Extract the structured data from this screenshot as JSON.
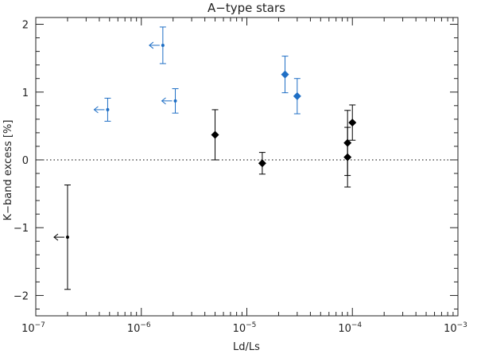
{
  "chart_data": {
    "type": "scatter",
    "title": "A−type stars",
    "xlabel": "Ld/Ls",
    "ylabel": "K−band excess [%]",
    "xscale": "log",
    "xlim": [
      1e-07,
      0.001
    ],
    "ylim": [
      -2.3,
      2.1
    ],
    "xticks": [
      {
        "value": 1e-07,
        "base": "10",
        "exp": "−7"
      },
      {
        "value": 1e-06,
        "base": "10",
        "exp": "−6"
      },
      {
        "value": 1e-05,
        "base": "10",
        "exp": "−5"
      },
      {
        "value": 0.0001,
        "base": "10",
        "exp": "−4"
      },
      {
        "value": 0.001,
        "base": "10",
        "exp": "−3"
      }
    ],
    "yticks": [
      {
        "value": -2,
        "label": "−2"
      },
      {
        "value": -1,
        "label": "−1"
      },
      {
        "value": 0,
        "label": "0"
      },
      {
        "value": 1,
        "label": "1"
      },
      {
        "value": 2,
        "label": "2"
      }
    ],
    "reference_line": {
      "y": 0,
      "style": "dotted"
    },
    "grid": false,
    "colors": {
      "blue": "#1f6fc5",
      "black": "#000000",
      "axis": "#222222"
    },
    "series": [
      {
        "color": "blue",
        "points": [
          {
            "x": 4.8e-07,
            "y": 0.74,
            "err_lo": 0.17,
            "err_hi": 0.17,
            "marker": "dot",
            "upper_limit": true
          },
          {
            "x": 1.6e-06,
            "y": 1.69,
            "err_lo": 0.27,
            "err_hi": 0.27,
            "marker": "dot",
            "upper_limit": true
          },
          {
            "x": 2.1e-06,
            "y": 0.87,
            "err_lo": 0.18,
            "err_hi": 0.18,
            "marker": "dot",
            "upper_limit": true
          },
          {
            "x": 2.3e-05,
            "y": 1.26,
            "err_lo": 0.27,
            "err_hi": 0.27,
            "marker": "diamond",
            "upper_limit": false
          },
          {
            "x": 3e-05,
            "y": 0.94,
            "err_lo": 0.26,
            "err_hi": 0.26,
            "marker": "diamond",
            "upper_limit": false
          }
        ]
      },
      {
        "color": "black",
        "points": [
          {
            "x": 2e-07,
            "y": -1.14,
            "err_lo": 0.77,
            "err_hi": 0.77,
            "marker": "dot",
            "upper_limit": true
          },
          {
            "x": 5e-06,
            "y": 0.37,
            "err_lo": 0.37,
            "err_hi": 0.37,
            "marker": "diamond",
            "upper_limit": false
          },
          {
            "x": 1.4e-05,
            "y": -0.05,
            "err_lo": 0.16,
            "err_hi": 0.16,
            "marker": "diamond",
            "upper_limit": false
          },
          {
            "x": 9e-05,
            "y": 0.25,
            "err_lo": 0.48,
            "err_hi": 0.48,
            "marker": "diamond",
            "upper_limit": false
          },
          {
            "x": 9e-05,
            "y": 0.04,
            "err_lo": 0.44,
            "err_hi": 0.44,
            "marker": "diamond",
            "upper_limit": false
          },
          {
            "x": 0.0001,
            "y": 0.55,
            "err_lo": 0.26,
            "err_hi": 0.26,
            "marker": "diamond",
            "upper_limit": false
          }
        ]
      }
    ]
  }
}
